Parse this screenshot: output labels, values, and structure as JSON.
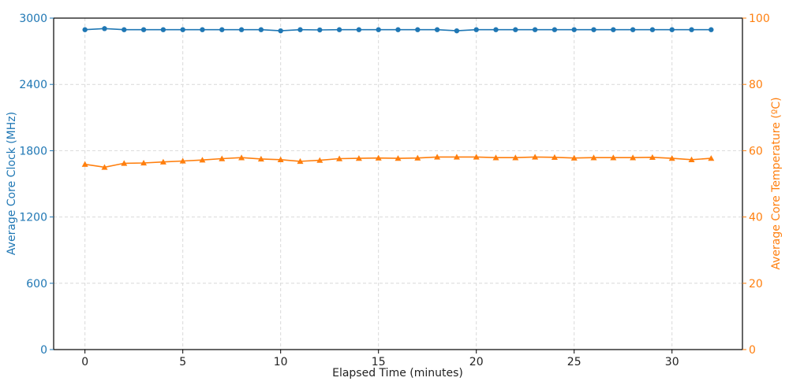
{
  "chart_data": {
    "type": "line",
    "xlabel": "Elapsed Time (minutes)",
    "ylabel_left": "Average Core Clock (MHz)",
    "ylabel_right": "Average Core Temperature (ºC)",
    "xlim": [
      -1.6,
      33.6
    ],
    "xticks": [
      0,
      5,
      10,
      15,
      20,
      25,
      30
    ],
    "ylim_left": [
      0,
      3000
    ],
    "yticks_left": [
      0,
      600,
      1200,
      1800,
      2400,
      3000
    ],
    "ylim_right": [
      0,
      100
    ],
    "yticks_right": [
      0,
      20,
      40,
      60,
      80,
      100
    ],
    "grid": true,
    "colors": {
      "clock": "#1f77b4",
      "temp": "#ff7f0e"
    },
    "x": [
      0,
      1,
      2,
      3,
      4,
      5,
      6,
      7,
      8,
      9,
      10,
      11,
      12,
      13,
      14,
      15,
      16,
      17,
      18,
      19,
      20,
      21,
      22,
      23,
      24,
      25,
      26,
      27,
      28,
      29,
      30,
      31,
      32
    ],
    "series": [
      {
        "axis": "left",
        "marker": "circle",
        "values": [
          2895,
          2905,
          2895,
          2895,
          2895,
          2895,
          2895,
          2895,
          2895,
          2895,
          2885,
          2895,
          2893,
          2895,
          2895,
          2895,
          2895,
          2895,
          2895,
          2885,
          2895,
          2895,
          2895,
          2895,
          2895,
          2895,
          2895,
          2895,
          2895,
          2895,
          2895,
          2895,
          2895
        ]
      },
      {
        "axis": "right",
        "marker": "triangle",
        "values": [
          55.9,
          55.0,
          56.2,
          56.3,
          56.6,
          56.9,
          57.2,
          57.6,
          57.9,
          57.5,
          57.3,
          56.8,
          57.1,
          57.6,
          57.7,
          57.8,
          57.7,
          57.8,
          58.1,
          58.1,
          58.1,
          57.9,
          57.9,
          58.1,
          58.0,
          57.8,
          57.9,
          57.9,
          57.9,
          58.0,
          57.7,
          57.3,
          57.7
        ]
      }
    ]
  }
}
